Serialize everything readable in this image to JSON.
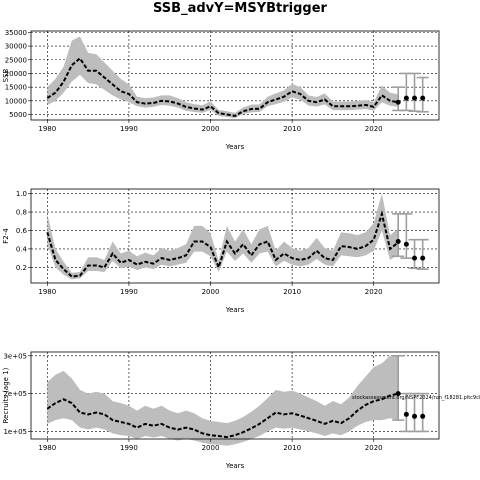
{
  "title": "SSB_advY=MSYBtrigger",
  "chart_data": [
    {
      "type": "line",
      "xlabel": "Years",
      "ylabel": "SSB",
      "xlim": [
        1978,
        2028
      ],
      "ylim": [
        3000,
        35500
      ],
      "xticks": [
        1980,
        1990,
        2000,
        2010,
        2020
      ],
      "yticks": [
        5000,
        10000,
        15000,
        20000,
        25000,
        30000,
        35000
      ],
      "ytick_labels": [
        "5000",
        "10000",
        "15000",
        "20000",
        "25000",
        "30000",
        "35000"
      ],
      "grid": true,
      "series": [
        {
          "x": [
            1980,
            1981,
            1982,
            1983,
            1984,
            1985,
            1986,
            1987,
            1988,
            1989,
            1990,
            1991,
            1992,
            1993,
            1994,
            1995,
            1996,
            1997,
            1998,
            1999,
            2000,
            2001,
            2002,
            2003,
            2004,
            2005,
            2006,
            2007,
            2008,
            2009,
            2010,
            2011,
            2012,
            2013,
            2014,
            2015,
            2016,
            2017,
            2018,
            2019,
            2020,
            2021,
            2022,
            2023
          ],
          "values": [
            11000,
            13000,
            17000,
            23000,
            25500,
            21000,
            21000,
            18500,
            16000,
            13500,
            12500,
            9500,
            9000,
            9200,
            10000,
            9800,
            9000,
            7800,
            7200,
            6800,
            8000,
            5500,
            5000,
            4500,
            6200,
            7000,
            7100,
            9500,
            10500,
            11500,
            13500,
            12500,
            10000,
            9500,
            10500,
            8000,
            8000,
            8000,
            8200,
            8500,
            7800,
            12000,
            10000,
            9500
          ],
          "lower": [
            8500,
            10000,
            13000,
            17000,
            19500,
            16500,
            16000,
            14000,
            12000,
            10500,
            9500,
            8000,
            7500,
            7800,
            8500,
            8200,
            7500,
            6400,
            5900,
            5600,
            6600,
            4500,
            4100,
            3700,
            5200,
            5800,
            5900,
            8000,
            8800,
            9600,
            11200,
            10400,
            8300,
            7900,
            8700,
            6600,
            6600,
            6600,
            6800,
            7000,
            6400,
            9500,
            8200,
            7800
          ],
          "upper": [
            15000,
            18000,
            22500,
            32000,
            33500,
            27500,
            27000,
            24000,
            21000,
            18000,
            16000,
            11500,
            11000,
            11200,
            12000,
            12000,
            11000,
            9500,
            8800,
            8400,
            9800,
            6700,
            6200,
            5600,
            7600,
            8600,
            8700,
            11500,
            12700,
            13800,
            16200,
            15000,
            12000,
            11400,
            12700,
            9700,
            9700,
            9700,
            10000,
            10300,
            9500,
            15500,
            13000,
            12300
          ]
        }
      ],
      "projection": {
        "x": [
          2023,
          2024,
          2025,
          2026
        ],
        "median": [
          9500,
          11000,
          11000,
          11000
        ],
        "lower": [
          6500,
          6500,
          6200,
          6000
        ],
        "upper": [
          15000,
          20000,
          20000,
          18500
        ]
      }
    },
    {
      "type": "line",
      "xlabel": "Years",
      "ylabel": "F2-4",
      "xlim": [
        1978,
        2028
      ],
      "ylim": [
        0.03,
        1.05
      ],
      "xticks": [
        1980,
        1990,
        2000,
        2010,
        2020
      ],
      "yticks": [
        0.2,
        0.4,
        0.6,
        0.8,
        1.0
      ],
      "ytick_labels": [
        "0.2",
        "0.4",
        "0.6",
        "0.8",
        "1.0"
      ],
      "grid": true,
      "series": [
        {
          "x": [
            1980,
            1981,
            1982,
            1983,
            1984,
            1985,
            1986,
            1987,
            1988,
            1989,
            1990,
            1991,
            1992,
            1993,
            1994,
            1995,
            1996,
            1997,
            1998,
            1999,
            2000,
            2001,
            2002,
            2003,
            2004,
            2005,
            2006,
            2007,
            2008,
            2009,
            2010,
            2011,
            2012,
            2013,
            2014,
            2015,
            2016,
            2017,
            2018,
            2019,
            2020,
            2021,
            2022,
            2023
          ],
          "values": [
            0.58,
            0.28,
            0.18,
            0.1,
            0.11,
            0.22,
            0.22,
            0.2,
            0.35,
            0.25,
            0.28,
            0.23,
            0.26,
            0.24,
            0.3,
            0.28,
            0.3,
            0.33,
            0.48,
            0.48,
            0.42,
            0.2,
            0.48,
            0.35,
            0.45,
            0.33,
            0.45,
            0.48,
            0.28,
            0.35,
            0.3,
            0.28,
            0.3,
            0.38,
            0.3,
            0.28,
            0.43,
            0.42,
            0.4,
            0.43,
            0.5,
            0.78,
            0.4,
            0.47
          ],
          "lower": [
            0.45,
            0.2,
            0.12,
            0.07,
            0.08,
            0.16,
            0.16,
            0.15,
            0.27,
            0.19,
            0.21,
            0.17,
            0.2,
            0.18,
            0.23,
            0.21,
            0.23,
            0.25,
            0.37,
            0.37,
            0.32,
            0.15,
            0.37,
            0.27,
            0.35,
            0.25,
            0.35,
            0.37,
            0.21,
            0.27,
            0.23,
            0.21,
            0.23,
            0.29,
            0.23,
            0.21,
            0.33,
            0.32,
            0.31,
            0.33,
            0.38,
            0.6,
            0.28,
            0.34
          ],
          "upper": [
            0.78,
            0.4,
            0.26,
            0.14,
            0.15,
            0.31,
            0.31,
            0.28,
            0.48,
            0.35,
            0.38,
            0.32,
            0.36,
            0.33,
            0.41,
            0.38,
            0.41,
            0.45,
            0.65,
            0.65,
            0.57,
            0.27,
            0.65,
            0.48,
            0.61,
            0.45,
            0.61,
            0.65,
            0.38,
            0.48,
            0.41,
            0.38,
            0.41,
            0.52,
            0.41,
            0.38,
            0.58,
            0.57,
            0.55,
            0.58,
            0.68,
            1.0,
            0.55,
            0.62
          ]
        }
      ],
      "projection": {
        "x": [
          2023,
          2024,
          2025,
          2026
        ],
        "median": [
          0.48,
          0.45,
          0.3,
          0.3
        ],
        "lower": [
          0.32,
          0.3,
          0.19,
          0.18
        ],
        "upper": [
          0.78,
          0.78,
          0.5,
          0.5
        ]
      }
    },
    {
      "type": "line",
      "xlabel": "Years",
      "ylabel": "Recruits (age 1)",
      "xlim": [
        1978,
        2028
      ],
      "ylim": [
        0.8,
        3.1
      ],
      "xticks": [
        1980,
        1990,
        2000,
        2010,
        2020
      ],
      "yticks": [
        1,
        2,
        3
      ],
      "ytick_labels": [
        "1e+05",
        "2e+05",
        "3e+05"
      ],
      "grid": true,
      "annotation": "stockassessment.org/NSPF2024/run_f18281.pltc9c8",
      "series": [
        {
          "x": [
            1980,
            1981,
            1982,
            1983,
            1984,
            1985,
            1986,
            1987,
            1988,
            1989,
            1990,
            1991,
            1992,
            1993,
            1994,
            1995,
            1996,
            1997,
            1998,
            1999,
            2000,
            2001,
            2002,
            2003,
            2004,
            2005,
            2006,
            2007,
            2008,
            2009,
            2010,
            2011,
            2012,
            2013,
            2014,
            2015,
            2016,
            2017,
            2018,
            2019,
            2020,
            2021,
            2022,
            2023
          ],
          "values": [
            1.6,
            1.75,
            1.85,
            1.75,
            1.5,
            1.45,
            1.5,
            1.45,
            1.3,
            1.25,
            1.2,
            1.1,
            1.2,
            1.15,
            1.2,
            1.1,
            1.05,
            1.1,
            1.05,
            0.95,
            0.9,
            0.88,
            0.85,
            0.9,
            0.98,
            1.08,
            1.2,
            1.35,
            1.5,
            1.45,
            1.48,
            1.42,
            1.35,
            1.28,
            1.2,
            1.28,
            1.22,
            1.35,
            1.55,
            1.7,
            1.8,
            1.85,
            1.95,
            2.0
          ],
          "lower": [
            1.2,
            1.3,
            1.35,
            1.3,
            1.1,
            1.05,
            1.1,
            1.05,
            0.95,
            0.9,
            0.88,
            0.8,
            0.88,
            0.84,
            0.88,
            0.8,
            0.76,
            0.8,
            0.76,
            0.7,
            0.66,
            0.65,
            0.62,
            0.66,
            0.72,
            0.8,
            0.88,
            1.0,
            1.1,
            1.07,
            1.1,
            1.05,
            1.0,
            0.95,
            0.88,
            0.95,
            0.9,
            1.0,
            1.15,
            1.25,
            1.3,
            1.3,
            1.35,
            1.3
          ],
          "upper": [
            2.3,
            2.5,
            2.6,
            2.4,
            2.1,
            2.0,
            2.05,
            2.0,
            1.8,
            1.75,
            1.68,
            1.55,
            1.68,
            1.6,
            1.68,
            1.55,
            1.48,
            1.55,
            1.48,
            1.35,
            1.28,
            1.25,
            1.22,
            1.28,
            1.38,
            1.52,
            1.68,
            1.88,
            2.1,
            2.05,
            2.08,
            2.0,
            1.9,
            1.8,
            1.68,
            1.8,
            1.72,
            1.9,
            2.2,
            2.45,
            2.7,
            2.8,
            3.0,
            3.0
          ]
        }
      ],
      "projection": {
        "x": [
          2023,
          2024,
          2025,
          2026
        ],
        "median": [
          2.0,
          1.45,
          1.4,
          1.4
        ],
        "lower": [
          1.3,
          1.0,
          1.0,
          1.0
        ],
        "upper": [
          3.0,
          2.0,
          2.0,
          2.0
        ]
      }
    }
  ]
}
